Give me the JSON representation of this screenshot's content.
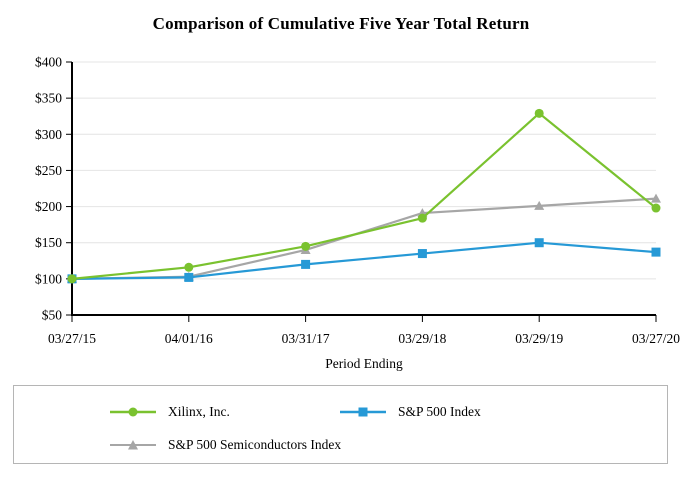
{
  "chart_data": {
    "type": "line",
    "title": "Comparison of Cumulative Five Year Total Return",
    "xlabel": "Period Ending",
    "categories": [
      "03/27/15",
      "04/01/16",
      "03/31/17",
      "03/29/18",
      "03/29/19",
      "03/27/20"
    ],
    "series": [
      {
        "name": "Xilinx, Inc.",
        "color": "#7AC22F",
        "marker": "circle",
        "values": [
          100,
          116,
          145,
          184,
          329,
          198
        ]
      },
      {
        "name": "S&P 500 Index",
        "color": "#2699D6",
        "marker": "square",
        "values": [
          100,
          102,
          120,
          135,
          150,
          137
        ]
      },
      {
        "name": "S&P 500 Semiconductors Index",
        "color": "#A6A6A6",
        "marker": "triangle",
        "values": [
          100,
          103,
          140,
          191,
          201,
          211
        ]
      }
    ],
    "ylim": [
      50,
      400
    ],
    "y_tick_step": 50,
    "y_tick_labels": [
      "$50",
      "$100",
      "$150",
      "$200",
      "$250",
      "$300",
      "$350",
      "$400"
    ],
    "grid": true,
    "legend_position": "bottom-box",
    "colors": {
      "axis": "#000000",
      "grid": "#E4E4E4",
      "legend_border": "#B5B5B5",
      "text": "#000000"
    }
  }
}
